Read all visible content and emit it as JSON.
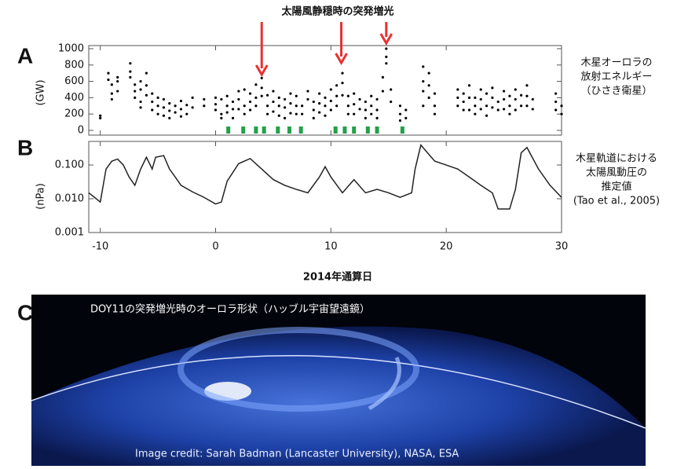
{
  "chart_data": [
    {
      "type": "scatter",
      "panel_label": "A",
      "ylabel": "(GW)",
      "right_label": [
        "木星オーロラの",
        "放射エネルギー",
        "（ひさき衛星）"
      ],
      "annotation": "太陽風静穏時の突発増光",
      "annotation_x": [
        4.0,
        10.9,
        14.8
      ],
      "color": "#000000",
      "marker_color": "#22a04a",
      "markers_x": [
        1.1,
        2.4,
        3.5,
        4.2,
        5.4,
        6.4,
        7.4,
        10.4,
        11.2,
        12.0,
        13.2,
        14.0,
        16.2
      ],
      "xlim": [
        -11,
        30
      ],
      "ylim": [
        -58,
        1038
      ],
      "yticks": [
        0,
        200,
        400,
        600,
        800,
        1000
      ],
      "x": [
        -10,
        -10,
        -9.3,
        -9.3,
        -9,
        -9,
        -9,
        -8.5,
        -8.5,
        -8.5,
        -7.4,
        -7.4,
        -7.4,
        -7,
        -7,
        -7,
        -6.5,
        -6.5,
        -6.5,
        -6.5,
        -6,
        -6,
        -6,
        -5.5,
        -5.5,
        -5.5,
        -5,
        -5,
        -5,
        -4.5,
        -4.5,
        -4.5,
        -4,
        -4,
        -4,
        -3.5,
        -3.5,
        -3,
        -3,
        -3,
        -2.5,
        -2.5,
        -2,
        -2,
        -1,
        -1,
        0,
        0,
        0,
        0.5,
        0.5,
        0.5,
        1,
        1,
        1,
        1.5,
        1.5,
        1.5,
        2,
        2,
        2,
        2.5,
        2.5,
        2.5,
        3,
        3,
        3,
        3.5,
        3.5,
        3.5,
        4,
        4,
        4,
        4.5,
        4.5,
        4.5,
        5,
        5,
        5,
        5.5,
        5.5,
        5.5,
        6,
        6,
        6,
        6.5,
        6.5,
        6.5,
        7,
        7,
        7,
        7.5,
        7.5,
        8,
        8,
        8.5,
        8.5,
        8.5,
        9,
        9,
        9,
        9.5,
        9.5,
        9.5,
        10,
        10,
        10,
        10.5,
        10.5,
        10.5,
        11,
        11,
        11,
        11.5,
        11.5,
        11.5,
        12,
        12,
        12,
        12.5,
        12.5,
        13,
        13,
        13,
        13.5,
        13.5,
        13.5,
        14,
        14,
        14,
        14.5,
        14.5,
        14.8,
        14.8,
        14.8,
        15.2,
        15.2,
        16,
        16,
        16,
        16.5,
        16.5,
        18,
        18,
        18,
        18,
        18.5,
        18.5,
        18.5,
        19,
        19,
        19,
        21,
        21,
        21,
        21.5,
        21.5,
        21.5,
        22,
        22,
        22,
        22.5,
        22.5,
        22.5,
        23,
        23,
        23,
        23.5,
        23.5,
        23.5,
        24,
        24,
        24,
        24.5,
        24.5,
        25,
        25,
        25,
        25.5,
        25.5,
        25.5,
        26,
        26,
        26,
        26.5,
        26.5,
        27,
        27,
        27,
        27.5,
        27.5,
        29.5,
        29.5,
        29.5,
        30,
        30
      ],
      "values": [
        150,
        180,
        700,
        620,
        560,
        450,
        380,
        480,
        600,
        650,
        820,
        720,
        650,
        560,
        480,
        400,
        600,
        500,
        350,
        280,
        700,
        550,
        430,
        450,
        350,
        250,
        400,
        300,
        200,
        380,
        280,
        180,
        330,
        240,
        150,
        300,
        220,
        360,
        260,
        170,
        310,
        200,
        400,
        280,
        380,
        300,
        400,
        320,
        250,
        380,
        200,
        150,
        420,
        300,
        220,
        350,
        260,
        150,
        480,
        380,
        260,
        500,
        300,
        200,
        450,
        350,
        250,
        560,
        400,
        300,
        640,
        520,
        420,
        430,
        300,
        200,
        480,
        350,
        230,
        400,
        300,
        180,
        380,
        280,
        150,
        450,
        330,
        210,
        420,
        300,
        200,
        300,
        200,
        480,
        380,
        350,
        250,
        150,
        450,
        330,
        220,
        400,
        300,
        180,
        500,
        360,
        250,
        550,
        420,
        300,
        700,
        580,
        430,
        420,
        300,
        200,
        450,
        320,
        200,
        380,
        260,
        350,
        250,
        150,
        420,
        300,
        200,
        380,
        250,
        150,
        650,
        480,
        1000,
        900,
        820,
        500,
        350,
        300,
        200,
        120,
        250,
        150,
        780,
        600,
        480,
        300,
        700,
        550,
        400,
        450,
        300,
        200,
        500,
        400,
        300,
        450,
        350,
        250,
        550,
        400,
        250,
        400,
        300,
        200,
        500,
        380,
        260,
        450,
        300,
        180,
        520,
        400,
        280,
        350,
        250,
        480,
        380,
        260,
        420,
        300,
        200,
        500,
        380,
        250,
        430,
        300,
        550,
        420,
        300,
        380,
        260,
        450,
        350,
        250,
        300,
        200
      ]
    },
    {
      "type": "line",
      "panel_label": "B",
      "ylabel": "(nPa)",
      "xlabel": "2014年通算日",
      "right_label": [
        "木星軌道における",
        "太陽風動圧の",
        "推定値",
        "(Tao et al., 2005)"
      ],
      "log_y": true,
      "color": "#222222",
      "xlim": [
        -11,
        30
      ],
      "xticks": [
        -10,
        0,
        10,
        20,
        30
      ],
      "ylim": [
        0.001,
        0.5
      ],
      "yticks": [
        0.001,
        {
          "value": 0.01,
          "label": "0.010"
        },
        {
          "value": 0.1,
          "label": "0.100"
        }
      ],
      "x": [
        -11,
        -10.5,
        -10,
        -9.5,
        -9,
        -8.5,
        -8,
        -7.5,
        -7,
        -6.5,
        -6,
        -5.5,
        -5.2,
        -4.5,
        -4,
        -3.5,
        -3,
        -2,
        -1,
        0,
        0.5,
        1,
        2,
        3,
        4,
        5,
        6,
        7,
        8,
        9,
        9.5,
        10,
        11,
        12,
        13,
        14,
        15,
        16,
        17,
        17.3,
        17.8,
        18.2,
        19,
        20,
        21,
        22,
        23,
        24,
        24.5,
        25.5,
        26,
        26.5,
        27,
        28,
        29,
        30
      ],
      "values": [
        0.015,
        0.011,
        0.008,
        0.076,
        0.13,
        0.15,
        0.1,
        0.044,
        0.025,
        0.076,
        0.17,
        0.076,
        0.17,
        0.19,
        0.076,
        0.044,
        0.025,
        0.016,
        0.011,
        0.007,
        0.008,
        0.033,
        0.11,
        0.155,
        0.076,
        0.037,
        0.025,
        0.019,
        0.015,
        0.044,
        0.089,
        0.044,
        0.015,
        0.037,
        0.015,
        0.019,
        0.015,
        0.011,
        0.015,
        0.076,
        0.39,
        0.27,
        0.13,
        0.1,
        0.076,
        0.044,
        0.025,
        0.015,
        0.005,
        0.005,
        0.019,
        0.23,
        0.33,
        0.076,
        0.025,
        0.011
      ]
    }
  ],
  "image_panel": {
    "label": "C",
    "caption": "DOY11の突発増光時のオーロラ形状（ハッブル宇宙望遠鏡）",
    "credit": "Image credit: Sarah Badman (Lancaster University), NASA, ESA"
  }
}
